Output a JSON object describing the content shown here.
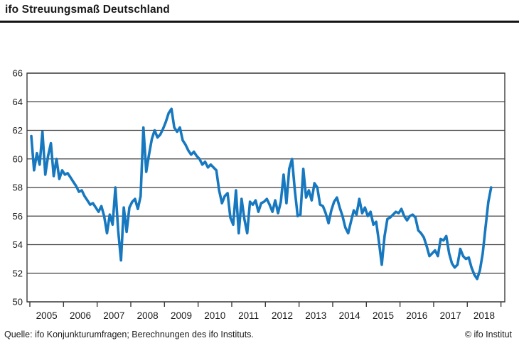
{
  "header": {
    "title": "ifo Streuungsmaß Deutschland"
  },
  "footer": {
    "source": "Quelle: ifo Konjunkturumfragen; Berechnungen des ifo Instituts.",
    "copyright": "© ifo Institut"
  },
  "colors": {
    "line": "#1778bf",
    "grid": "#3c3c3c",
    "text": "#1a1a1a",
    "rule": "#141414",
    "background": "#ffffff"
  },
  "chart_data": {
    "type": "line",
    "title": "ifo Streuungsmaß Deutschland",
    "xlabel": "",
    "ylabel": "",
    "ylim": [
      50,
      66
    ],
    "y_ticks": [
      50,
      52,
      54,
      56,
      58,
      60,
      62,
      64,
      66
    ],
    "x_tick_years": [
      2005,
      2006,
      2007,
      2008,
      2009,
      2010,
      2011,
      2012,
      2013,
      2014,
      2015,
      2016,
      2017,
      2018
    ],
    "grid": true,
    "legend": "none",
    "series": [
      {
        "name": "ifo Streuungsmaß",
        "frequency": "monthly",
        "start": "2005-01",
        "end": "2018-09",
        "values": [
          61.6,
          59.2,
          60.4,
          59.6,
          61.9,
          58.9,
          60.2,
          61.1,
          58.8,
          60.0,
          58.6,
          59.2,
          58.9,
          59.0,
          58.7,
          58.4,
          58.1,
          57.7,
          57.8,
          57.4,
          57.1,
          56.8,
          56.9,
          56.6,
          56.3,
          56.7,
          56.0,
          54.8,
          56.1,
          55.4,
          58.0,
          55.0,
          52.9,
          56.6,
          54.9,
          56.6,
          57.0,
          57.2,
          56.5,
          57.4,
          62.2,
          59.1,
          60.3,
          61.4,
          62.0,
          61.5,
          61.7,
          62.1,
          62.6,
          63.2,
          63.5,
          62.2,
          61.9,
          62.2,
          61.3,
          61.0,
          60.6,
          60.3,
          60.5,
          60.2,
          60.0,
          59.6,
          59.8,
          59.4,
          59.6,
          59.4,
          59.2,
          57.8,
          56.9,
          57.4,
          57.6,
          55.9,
          55.4,
          57.8,
          54.8,
          57.2,
          55.8,
          54.8,
          57.0,
          56.8,
          57.1,
          56.3,
          56.9,
          57.0,
          57.2,
          56.8,
          56.3,
          57.1,
          56.2,
          57.0,
          58.9,
          56.9,
          59.3,
          60.0,
          57.8,
          56.0,
          56.1,
          59.3,
          57.3,
          57.8,
          57.1,
          58.3,
          58.0,
          56.8,
          56.7,
          56.2,
          55.5,
          56.4,
          57.0,
          57.3,
          56.6,
          56.0,
          55.2,
          54.8,
          55.6,
          56.4,
          56.1,
          57.2,
          56.2,
          56.6,
          56.0,
          56.3,
          55.4,
          55.6,
          54.2,
          52.6,
          54.6,
          55.8,
          55.9,
          56.1,
          56.3,
          56.2,
          56.5,
          56.0,
          55.7,
          56.0,
          56.1,
          55.9,
          55.0,
          54.8,
          54.5,
          53.9,
          53.2,
          53.4,
          53.6,
          53.2,
          54.4,
          54.3,
          54.6,
          53.4,
          52.7,
          52.4,
          52.6,
          53.7,
          53.2,
          53.0,
          53.1,
          52.4,
          51.9,
          51.6,
          52.2,
          53.4,
          55.2,
          57.0,
          58.0
        ]
      }
    ]
  }
}
